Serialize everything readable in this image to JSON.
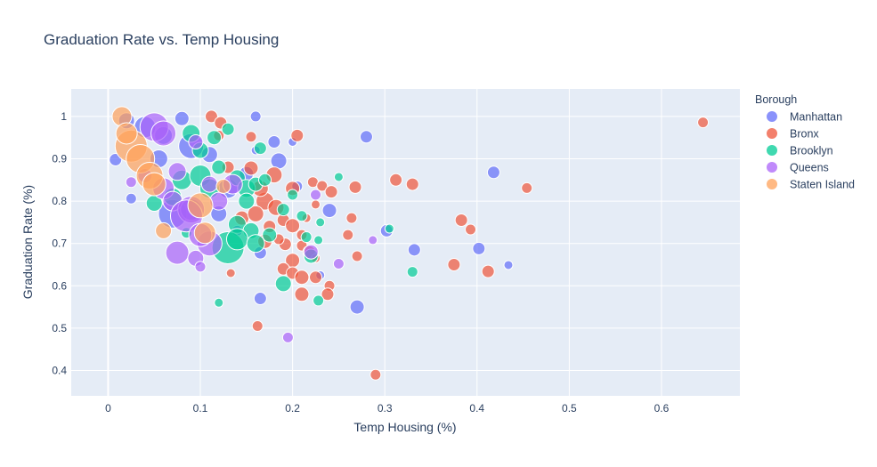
{
  "chart_data": {
    "type": "scatter",
    "title": "Graduation Rate vs. Temp Housing",
    "xlabel": "Temp Housing (%)",
    "ylabel": "Graduation Rate (%)",
    "xlim": [
      -0.04,
      0.685
    ],
    "ylim": [
      0.34,
      1.065
    ],
    "x_ticks": [
      0,
      0.1,
      0.2,
      0.3,
      0.4,
      0.5,
      0.6
    ],
    "x_tick_labels": [
      "0",
      "0.1",
      "0.2",
      "0.3",
      "0.4",
      "0.5",
      "0.6"
    ],
    "y_ticks": [
      0.4,
      0.5,
      0.6,
      0.7,
      0.8,
      0.9,
      1
    ],
    "y_tick_labels": [
      "0.4",
      "0.5",
      "0.6",
      "0.7",
      "0.8",
      "0.9",
      "1"
    ],
    "grid": true,
    "legend_title": "Borough",
    "legend_position": "right",
    "series": [
      {
        "name": "Manhattan",
        "color": "#636efa",
        "points": [
          [
            0.008,
            0.898,
            7
          ],
          [
            0.025,
            0.806,
            6
          ],
          [
            0.02,
            0.99,
            9
          ],
          [
            0.04,
            0.975,
            12
          ],
          [
            0.06,
            0.955,
            10
          ],
          [
            0.08,
            0.995,
            8
          ],
          [
            0.09,
            0.93,
            14
          ],
          [
            0.11,
            0.91,
            9
          ],
          [
            0.07,
            0.77,
            16
          ],
          [
            0.13,
            0.83,
            11
          ],
          [
            0.16,
            1.0,
            6
          ],
          [
            0.18,
            0.94,
            7
          ],
          [
            0.2,
            0.94,
            5
          ],
          [
            0.185,
            0.895,
            9
          ],
          [
            0.24,
            0.778,
            8
          ],
          [
            0.23,
            0.625,
            5
          ],
          [
            0.165,
            0.678,
            7
          ],
          [
            0.165,
            0.57,
            7
          ],
          [
            0.27,
            0.55,
            8
          ],
          [
            0.28,
            0.952,
            7
          ],
          [
            0.302,
            0.73,
            7
          ],
          [
            0.332,
            0.685,
            7
          ],
          [
            0.402,
            0.688,
            7
          ],
          [
            0.418,
            0.868,
            7
          ],
          [
            0.434,
            0.649,
            5
          ],
          [
            0.16,
            0.92,
            5
          ],
          [
            0.15,
            0.865,
            8
          ],
          [
            0.14,
            0.73,
            6
          ],
          [
            0.205,
            0.835,
            6
          ],
          [
            0.12,
            0.77,
            9
          ],
          [
            0.09,
            0.78,
            12
          ],
          [
            0.055,
            0.9,
            10
          ]
        ]
      },
      {
        "name": "Bronx",
        "color": "#ef553b",
        "points": [
          [
            0.112,
            1.0,
            7
          ],
          [
            0.122,
            0.985,
            7
          ],
          [
            0.12,
            0.955,
            6
          ],
          [
            0.155,
            0.952,
            6
          ],
          [
            0.205,
            0.955,
            7
          ],
          [
            0.155,
            0.878,
            8
          ],
          [
            0.18,
            0.862,
            9
          ],
          [
            0.2,
            0.83,
            8
          ],
          [
            0.222,
            0.845,
            6
          ],
          [
            0.232,
            0.836,
            6
          ],
          [
            0.242,
            0.822,
            7
          ],
          [
            0.225,
            0.792,
            5
          ],
          [
            0.268,
            0.833,
            7
          ],
          [
            0.264,
            0.76,
            6
          ],
          [
            0.26,
            0.72,
            6
          ],
          [
            0.17,
            0.8,
            10
          ],
          [
            0.182,
            0.785,
            9
          ],
          [
            0.19,
            0.755,
            7
          ],
          [
            0.2,
            0.742,
            8
          ],
          [
            0.21,
            0.72,
            6
          ],
          [
            0.192,
            0.698,
            7
          ],
          [
            0.21,
            0.695,
            6
          ],
          [
            0.218,
            0.68,
            7
          ],
          [
            0.225,
            0.665,
            5
          ],
          [
            0.2,
            0.66,
            8
          ],
          [
            0.19,
            0.64,
            7
          ],
          [
            0.2,
            0.63,
            7
          ],
          [
            0.21,
            0.62,
            8
          ],
          [
            0.225,
            0.62,
            7
          ],
          [
            0.24,
            0.6,
            6
          ],
          [
            0.238,
            0.58,
            7
          ],
          [
            0.21,
            0.58,
            8
          ],
          [
            0.133,
            0.63,
            5
          ],
          [
            0.162,
            0.505,
            6
          ],
          [
            0.27,
            0.67,
            6
          ],
          [
            0.29,
            0.39,
            6
          ],
          [
            0.312,
            0.85,
            7
          ],
          [
            0.33,
            0.84,
            7
          ],
          [
            0.375,
            0.65,
            7
          ],
          [
            0.383,
            0.755,
            7
          ],
          [
            0.393,
            0.733,
            6
          ],
          [
            0.412,
            0.634,
            7
          ],
          [
            0.454,
            0.831,
            6
          ],
          [
            0.645,
            0.986,
            6
          ],
          [
            0.17,
            0.705,
            8
          ],
          [
            0.175,
            0.74,
            7
          ],
          [
            0.145,
            0.76,
            8
          ],
          [
            0.165,
            0.83,
            9
          ],
          [
            0.185,
            0.71,
            6
          ],
          [
            0.215,
            0.76,
            5
          ],
          [
            0.13,
            0.88,
            7
          ],
          [
            0.16,
            0.77,
            9
          ]
        ]
      },
      {
        "name": "Brooklyn",
        "color": "#00cc96",
        "points": [
          [
            0.05,
            0.795,
            9
          ],
          [
            0.07,
            0.81,
            10
          ],
          [
            0.08,
            0.85,
            11
          ],
          [
            0.1,
            0.86,
            12
          ],
          [
            0.09,
            0.96,
            10
          ],
          [
            0.1,
            0.92,
            9
          ],
          [
            0.115,
            0.95,
            8
          ],
          [
            0.13,
            0.97,
            7
          ],
          [
            0.12,
            0.88,
            8
          ],
          [
            0.14,
            0.855,
            9
          ],
          [
            0.15,
            0.83,
            10
          ],
          [
            0.16,
            0.84,
            8
          ],
          [
            0.17,
            0.85,
            7
          ],
          [
            0.15,
            0.8,
            9
          ],
          [
            0.14,
            0.745,
            10
          ],
          [
            0.155,
            0.73,
            9
          ],
          [
            0.13,
            0.69,
            18
          ],
          [
            0.14,
            0.71,
            12
          ],
          [
            0.16,
            0.7,
            10
          ],
          [
            0.175,
            0.72,
            8
          ],
          [
            0.19,
            0.605,
            9
          ],
          [
            0.215,
            0.715,
            6
          ],
          [
            0.22,
            0.67,
            8
          ],
          [
            0.228,
            0.708,
            5
          ],
          [
            0.228,
            0.565,
            6
          ],
          [
            0.23,
            0.75,
            5
          ],
          [
            0.25,
            0.857,
            5
          ],
          [
            0.305,
            0.735,
            5
          ],
          [
            0.33,
            0.633,
            6
          ],
          [
            0.12,
            0.56,
            5
          ],
          [
            0.085,
            0.725,
            6
          ],
          [
            0.165,
            0.925,
            7
          ],
          [
            0.2,
            0.815,
            6
          ],
          [
            0.21,
            0.765,
            6
          ],
          [
            0.19,
            0.78,
            7
          ],
          [
            0.11,
            0.83,
            11
          ]
        ]
      },
      {
        "name": "Queens",
        "color": "#ab63fa",
        "points": [
          [
            0.025,
            0.845,
            6
          ],
          [
            0.04,
            0.86,
            8
          ],
          [
            0.06,
            0.83,
            12
          ],
          [
            0.07,
            0.8,
            11
          ],
          [
            0.075,
            0.678,
            13
          ],
          [
            0.09,
            0.78,
            15
          ],
          [
            0.085,
            0.765,
            18
          ],
          [
            0.095,
            0.665,
            9
          ],
          [
            0.11,
            0.7,
            14
          ],
          [
            0.1,
            0.72,
            13
          ],
          [
            0.1,
            0.645,
            6
          ],
          [
            0.12,
            0.8,
            10
          ],
          [
            0.135,
            0.84,
            11
          ],
          [
            0.05,
            0.975,
            16
          ],
          [
            0.06,
            0.96,
            14
          ],
          [
            0.095,
            0.94,
            8
          ],
          [
            0.22,
            0.68,
            8
          ],
          [
            0.225,
            0.815,
            6
          ],
          [
            0.25,
            0.652,
            6
          ],
          [
            0.287,
            0.708,
            5
          ],
          [
            0.195,
            0.478,
            6
          ],
          [
            0.11,
            0.84,
            9
          ],
          [
            0.075,
            0.87,
            10
          ]
        ]
      },
      {
        "name": "Staten Island",
        "color": "#ffa15a",
        "points": [
          [
            0.015,
            1.0,
            11
          ],
          [
            0.025,
            0.93,
            18
          ],
          [
            0.035,
            0.9,
            16
          ],
          [
            0.045,
            0.86,
            15
          ],
          [
            0.05,
            0.84,
            13
          ],
          [
            0.06,
            0.73,
            9
          ],
          [
            0.1,
            0.79,
            14
          ],
          [
            0.105,
            0.725,
            12
          ],
          [
            0.125,
            0.835,
            8
          ],
          [
            0.02,
            0.96,
            12
          ]
        ]
      }
    ]
  }
}
